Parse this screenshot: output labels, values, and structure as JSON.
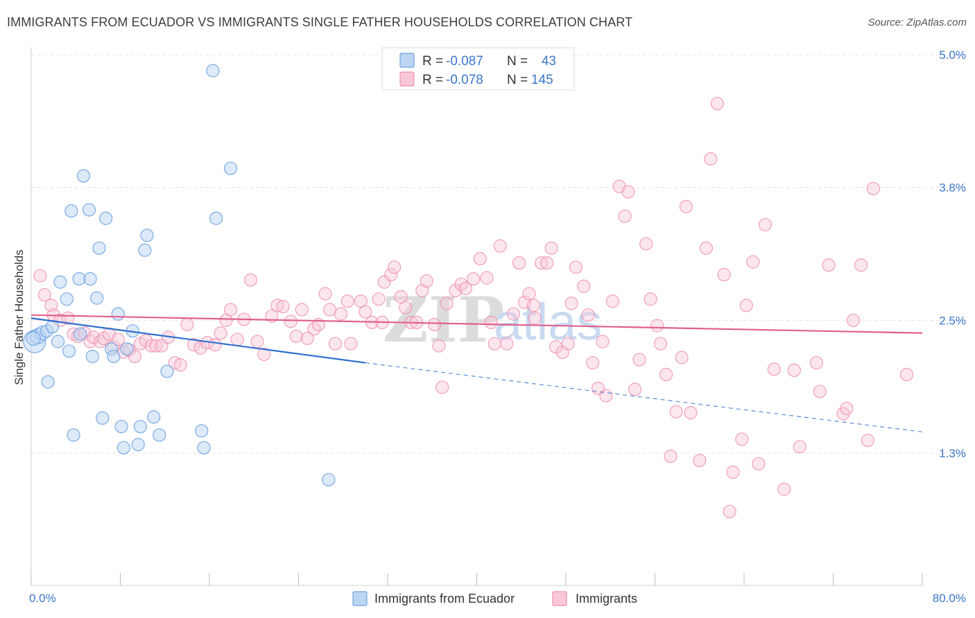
{
  "title": "IMMIGRANTS FROM ECUADOR VS IMMIGRANTS SINGLE FATHER HOUSEHOLDS CORRELATION CHART",
  "source": "Source: ZipAtlas.com",
  "watermark": {
    "zip": "ZIP",
    "atlas": "atlas"
  },
  "stats": {
    "r_label": "R =",
    "n_label": "N =",
    "rows": [
      {
        "r": "-0.087",
        "n": "43",
        "color": "#6ea2e0",
        "fill": "#bcd5f3"
      },
      {
        "r": "-0.078",
        "n": "145",
        "color": "#ee8fb0",
        "fill": "#f9c8d8"
      }
    ]
  },
  "legend": [
    {
      "label": "Immigrants from Ecuador",
      "color": "#6ea2e0",
      "fill": "#bcd5f3"
    },
    {
      "label": "Immigrants",
      "color": "#ee8fb0",
      "fill": "#f9c8d8"
    }
  ],
  "chart_data": {
    "type": "scatter",
    "title": "IMMIGRANTS FROM ECUADOR VS IMMIGRANTS SINGLE FATHER HOUSEHOLDS CORRELATION CHART",
    "xlabel": "",
    "ylabel": "Single Father Households",
    "xlim": [
      0,
      80
    ],
    "ylim": [
      0,
      5.3
    ],
    "x_tick_labels": [
      {
        "value": 0,
        "label": "0.0%"
      },
      {
        "value": 80,
        "label": "80.0%"
      }
    ],
    "x_ticks": [
      0,
      8,
      16,
      24,
      32,
      40,
      48,
      56,
      64,
      72,
      80
    ],
    "y_ticks": [
      {
        "value": 1.25,
        "label": "1.3%"
      },
      {
        "value": 2.5,
        "label": "2.5%"
      },
      {
        "value": 3.75,
        "label": "3.8%"
      },
      {
        "value": 5.0,
        "label": "5.0%"
      }
    ],
    "grid": true,
    "legend_position": "bottom",
    "series": [
      {
        "name": "Immigrants from Ecuador",
        "color": "#6ea2e0",
        "trend": {
          "x": [
            0,
            30
          ],
          "y": [
            2.52,
            2.1
          ],
          "dashed_to": [
            80,
            1.45
          ]
        },
        "points": [
          [
            0.3,
            2.3,
            16
          ],
          [
            0.6,
            2.35,
            11
          ],
          [
            1.0,
            2.38,
            10
          ],
          [
            1.4,
            2.4,
            9
          ],
          [
            1.9,
            2.44,
            9
          ],
          [
            2.4,
            2.3,
            9
          ],
          [
            3.2,
            2.7,
            9
          ],
          [
            3.4,
            2.21,
            9
          ],
          [
            3.6,
            3.53,
            9
          ],
          [
            2.6,
            2.86,
            9
          ],
          [
            3.8,
            1.42,
            9
          ],
          [
            4.3,
            2.89,
            9
          ],
          [
            4.4,
            2.37,
            9
          ],
          [
            4.7,
            3.86,
            9
          ],
          [
            5.2,
            3.54,
            9
          ],
          [
            5.3,
            2.89,
            9
          ],
          [
            5.5,
            2.16,
            9
          ],
          [
            5.9,
            2.71,
            9
          ],
          [
            6.1,
            3.18,
            9
          ],
          [
            6.4,
            1.58,
            9
          ],
          [
            6.7,
            3.46,
            9
          ],
          [
            7.2,
            2.23,
            9
          ],
          [
            7.4,
            2.16,
            9
          ],
          [
            7.8,
            2.56,
            9
          ],
          [
            8.1,
            1.5,
            9
          ],
          [
            8.3,
            1.3,
            9
          ],
          [
            8.6,
            2.23,
            9
          ],
          [
            9.1,
            2.4,
            9
          ],
          [
            9.6,
            1.33,
            9
          ],
          [
            9.8,
            1.5,
            9
          ],
          [
            10.2,
            3.16,
            9
          ],
          [
            10.4,
            3.3,
            9
          ],
          [
            11.0,
            1.59,
            9
          ],
          [
            11.5,
            1.42,
            9
          ],
          [
            12.2,
            2.02,
            9
          ],
          [
            15.3,
            1.46,
            9
          ],
          [
            15.5,
            1.3,
            9
          ],
          [
            16.3,
            4.85,
            9
          ],
          [
            16.6,
            3.46,
            9
          ],
          [
            17.9,
            3.93,
            9
          ],
          [
            26.7,
            1.0,
            9
          ],
          [
            1.5,
            1.92,
            9
          ],
          [
            0.2,
            2.33,
            10
          ]
        ]
      },
      {
        "name": "Immigrants",
        "color": "#ee8fb0",
        "trend": {
          "x": [
            0,
            80
          ],
          "y": [
            2.55,
            2.38
          ]
        },
        "points": [
          [
            0.8,
            2.92
          ],
          [
            1.2,
            2.74
          ],
          [
            1.8,
            2.64
          ],
          [
            2.0,
            2.55
          ],
          [
            2.6,
            2.5
          ],
          [
            3.3,
            2.52
          ],
          [
            3.8,
            2.37
          ],
          [
            4.2,
            2.35
          ],
          [
            4.8,
            2.38
          ],
          [
            5.3,
            2.3
          ],
          [
            5.6,
            2.34
          ],
          [
            6.2,
            2.3
          ],
          [
            6.5,
            2.33
          ],
          [
            7.0,
            2.37
          ],
          [
            7.4,
            2.25
          ],
          [
            7.8,
            2.32
          ],
          [
            8.3,
            2.2
          ],
          [
            8.8,
            2.22
          ],
          [
            9.3,
            2.16
          ],
          [
            9.8,
            2.28
          ],
          [
            10.3,
            2.31
          ],
          [
            10.8,
            2.26
          ],
          [
            11.2,
            2.26
          ],
          [
            11.7,
            2.26
          ],
          [
            12.3,
            2.34
          ],
          [
            12.9,
            2.1
          ],
          [
            13.4,
            2.08
          ],
          [
            14.0,
            2.46
          ],
          [
            14.6,
            2.27
          ],
          [
            15.2,
            2.24
          ],
          [
            15.8,
            2.29
          ],
          [
            16.5,
            2.27
          ],
          [
            17.0,
            2.38
          ],
          [
            17.5,
            2.5
          ],
          [
            17.9,
            2.6
          ],
          [
            18.5,
            2.32
          ],
          [
            19.1,
            2.51
          ],
          [
            19.7,
            2.88
          ],
          [
            20.3,
            2.3
          ],
          [
            20.9,
            2.18
          ],
          [
            21.6,
            2.54
          ],
          [
            22.1,
            2.64
          ],
          [
            22.6,
            2.63
          ],
          [
            23.3,
            2.49
          ],
          [
            23.8,
            2.35
          ],
          [
            24.3,
            2.6
          ],
          [
            24.8,
            2.33
          ],
          [
            25.4,
            2.42
          ],
          [
            25.8,
            2.46
          ],
          [
            26.4,
            2.75
          ],
          [
            26.8,
            2.6
          ],
          [
            27.3,
            2.28
          ],
          [
            27.8,
            2.56
          ],
          [
            28.4,
            2.68
          ],
          [
            28.7,
            2.28
          ],
          [
            29.6,
            2.68
          ],
          [
            30.0,
            2.58
          ],
          [
            30.6,
            2.48
          ],
          [
            31.2,
            2.7
          ],
          [
            31.7,
            2.86
          ],
          [
            32.3,
            2.93
          ],
          [
            32.6,
            3.0
          ],
          [
            33.2,
            2.72
          ],
          [
            33.6,
            2.62
          ],
          [
            34.1,
            2.48
          ],
          [
            34.6,
            2.48
          ],
          [
            35.1,
            2.78
          ],
          [
            35.5,
            2.87
          ],
          [
            36.2,
            2.46
          ],
          [
            36.6,
            2.26
          ],
          [
            36.9,
            1.87
          ],
          [
            37.3,
            2.66
          ],
          [
            38.1,
            2.78
          ],
          [
            38.6,
            2.84
          ],
          [
            39.0,
            2.8
          ],
          [
            39.7,
            2.89
          ],
          [
            40.3,
            3.08
          ],
          [
            40.9,
            2.9
          ],
          [
            41.3,
            2.48
          ],
          [
            41.6,
            2.28
          ],
          [
            42.1,
            3.2
          ],
          [
            42.7,
            2.28
          ],
          [
            43.3,
            2.56
          ],
          [
            43.8,
            3.04
          ],
          [
            44.3,
            2.67
          ],
          [
            44.7,
            2.75
          ],
          [
            45.1,
            2.64
          ],
          [
            45.8,
            3.04
          ],
          [
            46.3,
            3.04
          ],
          [
            46.7,
            3.18
          ],
          [
            47.1,
            2.25
          ],
          [
            47.7,
            2.2
          ],
          [
            48.2,
            2.28
          ],
          [
            48.5,
            2.66
          ],
          [
            48.9,
            3.0
          ],
          [
            49.6,
            2.82
          ],
          [
            50.0,
            2.55
          ],
          [
            50.4,
            2.1
          ],
          [
            50.9,
            1.86
          ],
          [
            51.3,
            2.3
          ],
          [
            51.6,
            1.79
          ],
          [
            52.2,
            2.68
          ],
          [
            52.8,
            3.76
          ],
          [
            53.3,
            3.48
          ],
          [
            53.6,
            3.71
          ],
          [
            54.2,
            1.85
          ],
          [
            54.6,
            2.13
          ],
          [
            55.2,
            3.22
          ],
          [
            55.6,
            2.7
          ],
          [
            56.2,
            2.45
          ],
          [
            56.5,
            2.28
          ],
          [
            57.0,
            1.99
          ],
          [
            57.4,
            1.22
          ],
          [
            57.9,
            1.64
          ],
          [
            58.4,
            2.15
          ],
          [
            58.8,
            3.57
          ],
          [
            59.2,
            1.63
          ],
          [
            60.0,
            1.18
          ],
          [
            60.6,
            3.18
          ],
          [
            61.0,
            4.02
          ],
          [
            61.6,
            4.54
          ],
          [
            62.2,
            2.93
          ],
          [
            62.7,
            0.7
          ],
          [
            63.0,
            1.07
          ],
          [
            63.8,
            1.38
          ],
          [
            64.2,
            2.64
          ],
          [
            64.8,
            3.05
          ],
          [
            65.3,
            1.15
          ],
          [
            65.9,
            3.4
          ],
          [
            66.7,
            2.04
          ],
          [
            67.6,
            0.91
          ],
          [
            68.5,
            2.03
          ],
          [
            69.0,
            1.31
          ],
          [
            70.5,
            2.1
          ],
          [
            70.8,
            1.83
          ],
          [
            71.6,
            3.02
          ],
          [
            72.9,
            1.62
          ],
          [
            73.2,
            1.67
          ],
          [
            73.8,
            2.5
          ],
          [
            74.5,
            3.02
          ],
          [
            75.1,
            1.37
          ],
          [
            75.6,
            3.74
          ],
          [
            78.6,
            1.99
          ],
          [
            31.5,
            2.48
          ],
          [
            45.2,
            2.52
          ]
        ]
      }
    ]
  }
}
